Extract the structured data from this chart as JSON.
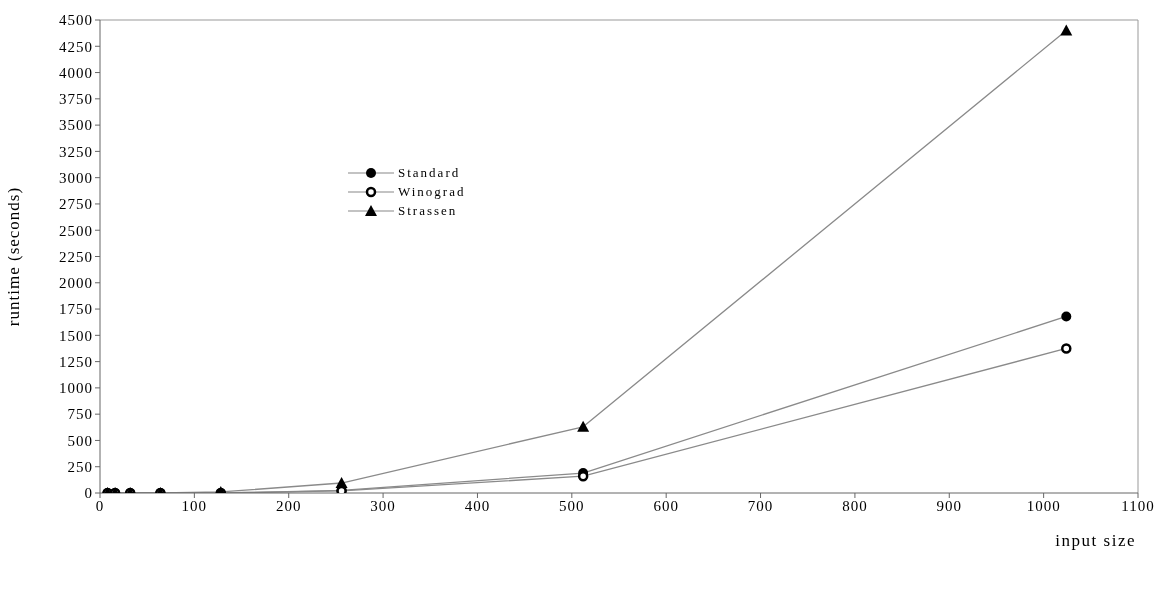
{
  "chart_data": {
    "type": "line",
    "xlabel": "input size",
    "ylabel": "runtime (seconds)",
    "x": [
      8,
      16,
      32,
      64,
      128,
      256,
      512,
      1024
    ],
    "series": [
      {
        "name": "Standard",
        "color": "#000000",
        "marker": "circle",
        "values": [
          0,
          0,
          0,
          0,
          0,
          25,
          190,
          1680
        ]
      },
      {
        "name": "Winograd",
        "color": "#000000",
        "marker": "circle",
        "values": [
          0,
          0,
          0,
          0,
          0,
          20,
          160,
          1375
        ]
      },
      {
        "name": "Strassen",
        "color": "#000000",
        "marker": "triangle",
        "values": [
          0,
          0,
          0,
          0,
          10,
          95,
          630,
          4400
        ]
      }
    ],
    "xlim": [
      0,
      1100
    ],
    "xticks": [
      0,
      100,
      200,
      300,
      400,
      500,
      600,
      700,
      800,
      900,
      1000,
      1100
    ],
    "ylim": [
      0,
      4500
    ],
    "yticks": [
      0,
      250,
      500,
      750,
      1000,
      1250,
      1500,
      1750,
      2000,
      2250,
      2500,
      2750,
      3000,
      3250,
      3500,
      3750,
      4000,
      4250,
      4500
    ],
    "grid": false,
    "legend": "top left"
  }
}
